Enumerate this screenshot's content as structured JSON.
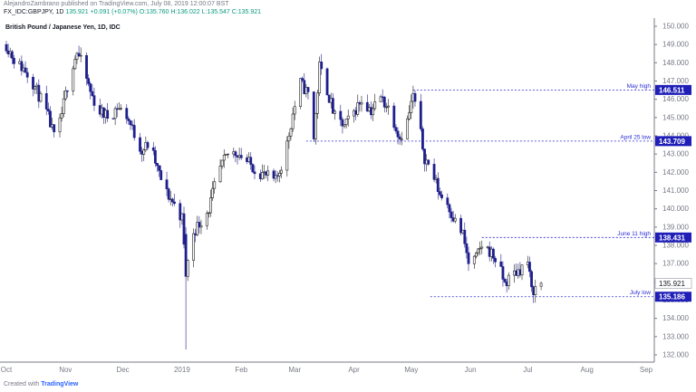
{
  "header": {
    "publisher_line": "AlejandroZambrano published on TradingView.com, July 08, 2019 12:00:07 BST",
    "symbol": "FX_IDC:GBPJPY, 1D",
    "last": "135.921",
    "change": "+0.091 (+0.07%)",
    "open": "O:135.760",
    "high": "H:136.022",
    "low": "L:135.547",
    "close": "C:135.921"
  },
  "footer": {
    "created_with": "Created with",
    "brand": "TradingView"
  },
  "chart_data": {
    "type": "candlestick",
    "title": "British Pound / Japanese Yen, 1D, IDC",
    "ylim": [
      132,
      150
    ],
    "y_ticks": [
      "132.000",
      "133.000",
      "134.000",
      "135.000",
      "136.000",
      "137.000",
      "138.000",
      "139.000",
      "140.000",
      "141.000",
      "142.000",
      "143.000",
      "144.000",
      "145.000",
      "146.000",
      "147.000",
      "148.000",
      "149.000",
      "150.000"
    ],
    "x_ticks": [
      {
        "label": "Oct",
        "date": "2018-10-01"
      },
      {
        "label": "Nov",
        "date": "2018-11-01"
      },
      {
        "label": "Dec",
        "date": "2018-12-01"
      },
      {
        "label": "2019",
        "date": "2019-01-01"
      },
      {
        "label": "Feb",
        "date": "2019-02-01"
      },
      {
        "label": "Mar",
        "date": "2019-03-01"
      },
      {
        "label": "Apr",
        "date": "2019-04-01"
      },
      {
        "label": "May",
        "date": "2019-05-01"
      },
      {
        "label": "Jun",
        "date": "2019-06-01"
      },
      {
        "label": "Jul",
        "date": "2019-07-01"
      },
      {
        "label": "Aug",
        "date": "2019-08-01"
      },
      {
        "label": "Sep",
        "date": "2019-09-01"
      }
    ],
    "date_range": [
      "2018-10-01",
      "2019-09-01"
    ],
    "current_price": "135.921",
    "levels": [
      {
        "name": "May high",
        "value": 146.511,
        "label": "146.511",
        "from": "2019-05-02"
      },
      {
        "name": "April 25 low",
        "value": 143.709,
        "label": "143.709",
        "from": "2019-03-07"
      },
      {
        "name": "June 11 high",
        "value": 138.431,
        "label": "138.431",
        "from": "2019-06-07"
      },
      {
        "name": "July low",
        "value": 135.186,
        "label": "135.186",
        "from": "2019-05-11"
      }
    ],
    "anchors": [
      {
        "date": "2018-10-01",
        "v": 149.0
      },
      {
        "date": "2018-10-06",
        "v": 148.0
      },
      {
        "date": "2018-10-11",
        "v": 147.6
      },
      {
        "date": "2018-10-15",
        "v": 146.9
      },
      {
        "date": "2018-10-19",
        "v": 146.0
      },
      {
        "date": "2018-10-23",
        "v": 145.0
      },
      {
        "date": "2018-10-27",
        "v": 143.6
      },
      {
        "date": "2018-10-30",
        "v": 145.2
      },
      {
        "date": "2018-11-03",
        "v": 147.3
      },
      {
        "date": "2018-11-07",
        "v": 148.6
      },
      {
        "date": "2018-11-10",
        "v": 147.8
      },
      {
        "date": "2018-11-14",
        "v": 146.4
      },
      {
        "date": "2018-11-18",
        "v": 145.4
      },
      {
        "date": "2018-11-24",
        "v": 145.0
      },
      {
        "date": "2018-11-28",
        "v": 145.6
      },
      {
        "date": "2018-12-03",
        "v": 145.1
      },
      {
        "date": "2018-12-07",
        "v": 144.1
      },
      {
        "date": "2018-12-11",
        "v": 143.2
      },
      {
        "date": "2018-12-15",
        "v": 143.6
      },
      {
        "date": "2018-12-19",
        "v": 142.2
      },
      {
        "date": "2018-12-23",
        "v": 141.0
      },
      {
        "date": "2018-12-27",
        "v": 140.4
      },
      {
        "date": "2019-01-01",
        "v": 139.5
      },
      {
        "date": "2019-01-03",
        "v": 136.3
      },
      {
        "date": "2019-01-06",
        "v": 138.6
      },
      {
        "date": "2019-01-10",
        "v": 139.2
      },
      {
        "date": "2019-01-15",
        "v": 140.0
      },
      {
        "date": "2019-01-20",
        "v": 142.0
      },
      {
        "date": "2019-01-25",
        "v": 143.0
      },
      {
        "date": "2019-01-30",
        "v": 143.1
      },
      {
        "date": "2019-02-04",
        "v": 142.6
      },
      {
        "date": "2019-02-09",
        "v": 142.1
      },
      {
        "date": "2019-02-14",
        "v": 141.8
      },
      {
        "date": "2019-02-19",
        "v": 141.5
      },
      {
        "date": "2019-02-24",
        "v": 143.0
      },
      {
        "date": "2019-02-28",
        "v": 145.2
      },
      {
        "date": "2019-03-04",
        "v": 146.9
      },
      {
        "date": "2019-03-08",
        "v": 146.3
      },
      {
        "date": "2019-03-11",
        "v": 143.9
      },
      {
        "date": "2019-03-14",
        "v": 147.8
      },
      {
        "date": "2019-03-18",
        "v": 146.5
      },
      {
        "date": "2019-03-22",
        "v": 145.0
      },
      {
        "date": "2019-03-27",
        "v": 144.5
      },
      {
        "date": "2019-04-01",
        "v": 145.3
      },
      {
        "date": "2019-04-05",
        "v": 146.0
      },
      {
        "date": "2019-04-10",
        "v": 145.4
      },
      {
        "date": "2019-04-15",
        "v": 146.1
      },
      {
        "date": "2019-04-20",
        "v": 145.4
      },
      {
        "date": "2019-04-25",
        "v": 143.9
      },
      {
        "date": "2019-04-29",
        "v": 144.8
      },
      {
        "date": "2019-05-02",
        "v": 146.2
      },
      {
        "date": "2019-05-04",
        "v": 145.3
      },
      {
        "date": "2019-05-08",
        "v": 142.8
      },
      {
        "date": "2019-05-12",
        "v": 142.0
      },
      {
        "date": "2019-05-16",
        "v": 140.8
      },
      {
        "date": "2019-05-20",
        "v": 140.3
      },
      {
        "date": "2019-05-24",
        "v": 139.3
      },
      {
        "date": "2019-05-28",
        "v": 138.6
      },
      {
        "date": "2019-05-31",
        "v": 137.0
      },
      {
        "date": "2019-06-04",
        "v": 137.3
      },
      {
        "date": "2019-06-07",
        "v": 138.0
      },
      {
        "date": "2019-06-11",
        "v": 137.7
      },
      {
        "date": "2019-06-15",
        "v": 137.1
      },
      {
        "date": "2019-06-19",
        "v": 135.9
      },
      {
        "date": "2019-06-23",
        "v": 136.4
      },
      {
        "date": "2019-06-27",
        "v": 136.7
      },
      {
        "date": "2019-07-01",
        "v": 137.1
      },
      {
        "date": "2019-07-03",
        "v": 135.5
      },
      {
        "date": "2019-07-08",
        "v": 135.9
      }
    ]
  }
}
